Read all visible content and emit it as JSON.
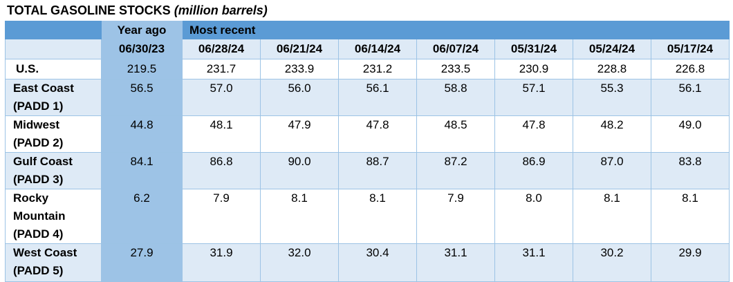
{
  "title": {
    "main": "TOTAL GASOLINE STOCKS",
    "unit": "(million barrels)"
  },
  "header": {
    "year_ago": "Year ago",
    "most_recent": "Most recent",
    "dates": [
      "06/30/23",
      "06/28/24",
      "06/21/24",
      "06/14/24",
      "06/07/24",
      "05/31/24",
      "05/24/24",
      "05/17/24"
    ]
  },
  "rows": [
    {
      "region_lines": [
        "U.S."
      ],
      "values": [
        "219.5",
        "231.7",
        "233.9",
        "231.2",
        "233.5",
        "230.9",
        "228.8",
        "226.8"
      ]
    },
    {
      "region_lines": [
        "East Coast",
        "(PADD 1)"
      ],
      "values": [
        "56.5",
        "57.0",
        "56.0",
        "56.1",
        "58.8",
        "57.1",
        "55.3",
        "56.1"
      ]
    },
    {
      "region_lines": [
        "Midwest",
        "(PADD 2)"
      ],
      "values": [
        "44.8",
        "48.1",
        "47.9",
        "47.8",
        "48.5",
        "47.8",
        "48.2",
        "49.0"
      ]
    },
    {
      "region_lines": [
        "Gulf Coast",
        "(PADD 3)"
      ],
      "values": [
        "84.1",
        "86.8",
        "90.0",
        "88.7",
        "87.2",
        "86.9",
        "87.0",
        "83.8"
      ]
    },
    {
      "region_lines": [
        "Rocky",
        "Mountain",
        "(PADD 4)"
      ],
      "values": [
        "6.2",
        "7.9",
        "8.1",
        "8.1",
        "7.9",
        "8.0",
        "8.1",
        "8.1"
      ]
    },
    {
      "region_lines": [
        "West Coast",
        "(PADD 5)"
      ],
      "values": [
        "27.9",
        "31.9",
        "32.0",
        "30.4",
        "31.1",
        "31.1",
        "30.2",
        "29.9"
      ]
    }
  ]
}
